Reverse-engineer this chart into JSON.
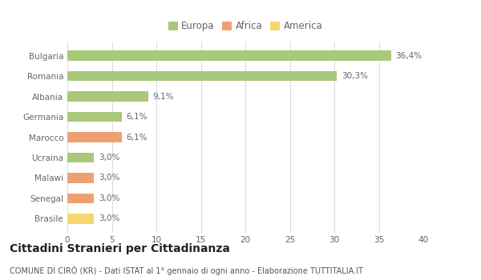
{
  "categories": [
    "Brasile",
    "Senegal",
    "Malawi",
    "Ucraina",
    "Marocco",
    "Germania",
    "Albania",
    "Romania",
    "Bulgaria"
  ],
  "values": [
    3.0,
    3.0,
    3.0,
    3.0,
    6.1,
    6.1,
    9.1,
    30.3,
    36.4
  ],
  "labels": [
    "3,0%",
    "3,0%",
    "3,0%",
    "3,0%",
    "6,1%",
    "6,1%",
    "9,1%",
    "30,3%",
    "36,4%"
  ],
  "colors": [
    "#f5d76e",
    "#f0a070",
    "#f0a070",
    "#a8c87a",
    "#f0a070",
    "#a8c87a",
    "#a8c87a",
    "#a8c87a",
    "#a8c87a"
  ],
  "legend": [
    {
      "label": "Europa",
      "color": "#a8c87a"
    },
    {
      "label": "Africa",
      "color": "#f0a070"
    },
    {
      "label": "America",
      "color": "#f5d76e"
    }
  ],
  "xlim": [
    0,
    40
  ],
  "xticks": [
    0,
    5,
    10,
    15,
    20,
    25,
    30,
    35,
    40
  ],
  "title": "Cittadini Stranieri per Cittadinanza",
  "subtitle": "COMUNE DI CIRÒ (KR) - Dati ISTAT al 1° gennaio di ogni anno - Elaborazione TUTTITALIA.IT",
  "bg_color": "#ffffff",
  "grid_color": "#dddddd",
  "bar_height": 0.5,
  "label_fontsize": 7.5,
  "tick_fontsize": 7.5,
  "title_fontsize": 10,
  "subtitle_fontsize": 7
}
